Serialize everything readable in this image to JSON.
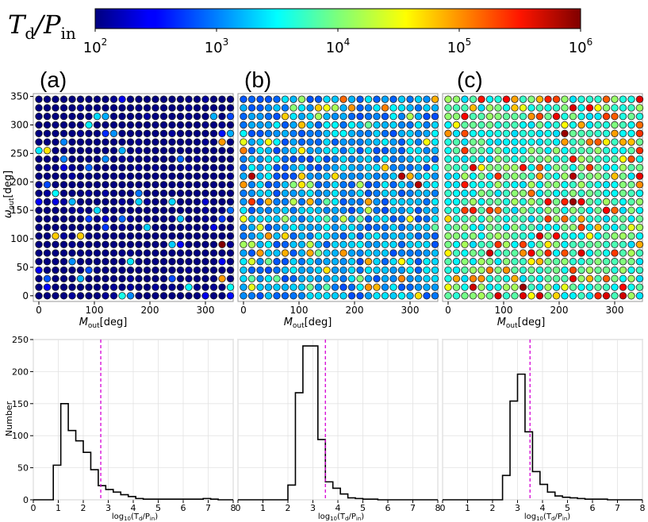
{
  "colorbar": {
    "label_main": "T",
    "label_sub": "d",
    "label_slash": "/P",
    "label_sub2": "in",
    "ticks": [
      {
        "base": "10",
        "exp": "2"
      },
      {
        "base": "10",
        "exp": "3"
      },
      {
        "base": "10",
        "exp": "4"
      },
      {
        "base": "10",
        "exp": "5"
      },
      {
        "base": "10",
        "exp": "6"
      }
    ],
    "range": [
      100,
      1000000
    ],
    "scale": "log",
    "colormap": "jet"
  },
  "panel_labels": [
    "(a)",
    "(b)",
    "(c)"
  ],
  "scatter": {
    "xlabel_main": "M",
    "xlabel_sub": "out",
    "xlabel_unit": "[deg]",
    "ylabel_main": "ω",
    "ylabel_sub": "out",
    "ylabel_unit": "[deg]",
    "xticks": [
      "0",
      "100",
      "200",
      "300"
    ],
    "yticks": [
      "0",
      "50",
      "100",
      "150",
      "200",
      "250",
      "300",
      "350"
    ],
    "xlim": [
      -10,
      350
    ],
    "ylim": [
      -10,
      355
    ],
    "grid_step_deg": 15
  },
  "hist": {
    "ylabel": "Number",
    "xlabel_pre": "log",
    "xlabel_sub10": "10",
    "xlabel_open": "(T",
    "xlabel_sub_d": "d",
    "xlabel_slash": "/P",
    "xlabel_sub_in": "in",
    "xlabel_close": ")",
    "xticks": [
      "0",
      "1",
      "2",
      "3",
      "4",
      "5",
      "6",
      "7",
      "8"
    ],
    "yticks": [
      "0",
      "50",
      "100",
      "150",
      "200",
      "250"
    ],
    "median_line_color": "#d500d5"
  },
  "chart_data": [
    {
      "type": "scatter",
      "panel": "(a)",
      "color_by": "log10(Td/Pin)",
      "note_grid": "24 x 24 grid, M_out and omega_out from 0 to 345 deg in 15 deg steps",
      "typical_log10_value": 1.5,
      "high_points": [
        {
          "x": 330,
          "y": 90,
          "log10": 6.2
        },
        {
          "x": 330,
          "y": 270,
          "log10": 4.9
        },
        {
          "x": 330,
          "y": 30,
          "log10": 4.9
        },
        {
          "x": 75,
          "y": 105,
          "log10": 4.7
        },
        {
          "x": 30,
          "y": 105,
          "log10": 4.7
        },
        {
          "x": 15,
          "y": 255,
          "log10": 4.6
        }
      ]
    },
    {
      "type": "scatter",
      "panel": "(b)",
      "color_by": "log10(Td/Pin)",
      "typical_log10_value": 3.0,
      "high_points": [
        {
          "x": 15,
          "y": 210,
          "log10": 5.8
        },
        {
          "x": 285,
          "y": 210,
          "log10": 5.8
        },
        {
          "x": 315,
          "y": 195,
          "log10": 5.8
        },
        {
          "x": 15,
          "y": 165,
          "log10": 5.3
        }
      ]
    },
    {
      "type": "scatter",
      "panel": "(c)",
      "color_by": "log10(Td/Pin)",
      "typical_log10_value": 3.5,
      "high_points": [
        {
          "x": 225,
          "y": 210,
          "log10": 5.8
        },
        {
          "x": 135,
          "y": 15,
          "log10": 5.9
        },
        {
          "x": 225,
          "y": 165,
          "log10": 5.9
        },
        {
          "x": 210,
          "y": 285,
          "log10": 5.9
        },
        {
          "x": 105,
          "y": 345,
          "log10": 5.5
        }
      ]
    },
    {
      "type": "bar",
      "panel": "(a) histogram",
      "bin_edges": [
        0.8,
        1.1,
        1.4,
        1.7,
        2.0,
        2.3,
        2.6,
        2.9,
        3.2,
        3.5,
        3.8,
        4.1,
        4.4,
        4.7,
        5.0,
        5.3,
        5.6,
        5.9,
        6.2,
        6.5,
        6.8,
        7.1,
        7.4
      ],
      "values": [
        54,
        150,
        108,
        92,
        74,
        47,
        22,
        16,
        12,
        8,
        5,
        2,
        1,
        1,
        1,
        1,
        1,
        1,
        1,
        1,
        2,
        1
      ],
      "median_log10": 2.7,
      "xlim": [
        0,
        8
      ],
      "ylim": [
        0,
        250
      ]
    },
    {
      "type": "bar",
      "panel": "(b) histogram",
      "bin_edges": [
        2.0,
        2.3,
        2.6,
        2.9,
        3.2,
        3.5,
        3.8,
        4.1,
        4.4,
        4.7,
        5.0,
        5.3,
        5.6,
        5.9,
        6.2,
        6.5,
        6.8,
        7.1,
        7.4
      ],
      "values": [
        23,
        167,
        240,
        240,
        94,
        28,
        18,
        9,
        3,
        2,
        1,
        1,
        0,
        0,
        0,
        0,
        0,
        0
      ],
      "median_log10": 3.5,
      "xlim": [
        0,
        8
      ],
      "ylim": [
        0,
        250
      ]
    },
    {
      "type": "bar",
      "panel": "(c) histogram",
      "bin_edges": [
        2.4,
        2.7,
        3.0,
        3.3,
        3.6,
        3.9,
        4.2,
        4.5,
        4.8,
        5.1,
        5.4,
        5.7,
        6.0,
        6.3,
        6.6,
        6.9,
        7.2,
        7.5
      ],
      "values": [
        38,
        154,
        196,
        106,
        44,
        24,
        12,
        6,
        4,
        3,
        2,
        1,
        1,
        1,
        0,
        0,
        0
      ],
      "median_log10": 3.5,
      "xlim": [
        0,
        8
      ],
      "ylim": [
        0,
        250
      ]
    }
  ]
}
